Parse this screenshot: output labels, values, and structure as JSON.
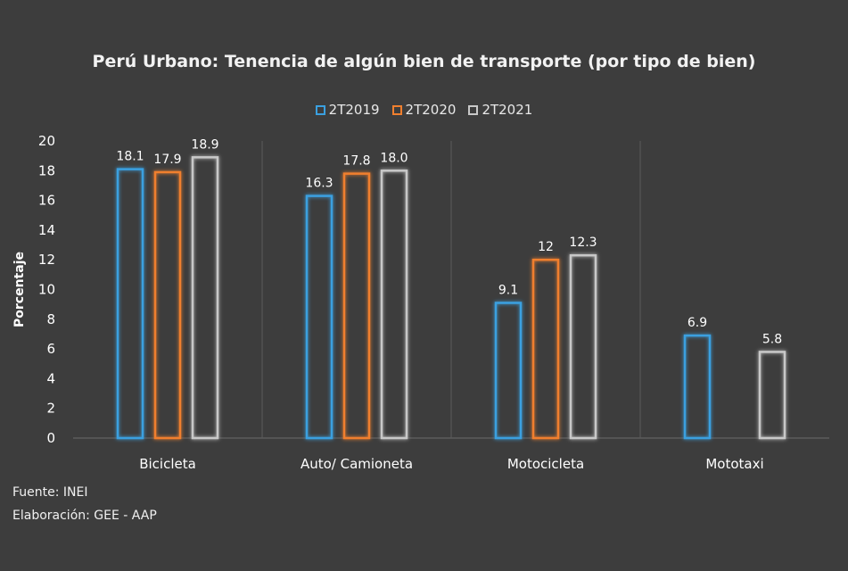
{
  "chart_data": {
    "type": "bar",
    "title": "Perú Urbano: Tenencia de algún bien de transporte (por tipo de bien)",
    "xlabel": "",
    "ylabel": "Porcentaje",
    "ylim": [
      0,
      20
    ],
    "yticks": [
      "0",
      "2",
      "4",
      "6",
      "8",
      "10",
      "12",
      "14",
      "16",
      "18",
      "20"
    ],
    "categories": [
      "Bicicleta",
      "Auto/ Camioneta",
      "Motocicleta",
      "Mototaxi"
    ],
    "series": [
      {
        "name": "2T2019",
        "color": "#3aa0e0",
        "values": [
          18.1,
          16.3,
          9.1,
          6.9
        ],
        "labels": [
          "18.1",
          "16.3",
          "9.1",
          "6.9"
        ]
      },
      {
        "name": "2T2020",
        "color": "#f07f2e",
        "values": [
          17.9,
          17.8,
          12,
          null
        ],
        "labels": [
          "17.9",
          "17.8",
          "12",
          ""
        ]
      },
      {
        "name": "2T2021",
        "color": "#c8c8c8",
        "values": [
          18.9,
          18.0,
          12.3,
          5.8
        ],
        "labels": [
          "18.9",
          "18.0",
          "12.3",
          "5.8"
        ]
      }
    ],
    "grid": "vertical separators between categories",
    "legend": "top-center"
  },
  "footer": {
    "source": "Fuente: INEI",
    "credit": "Elaboración: GEE - AAP"
  }
}
